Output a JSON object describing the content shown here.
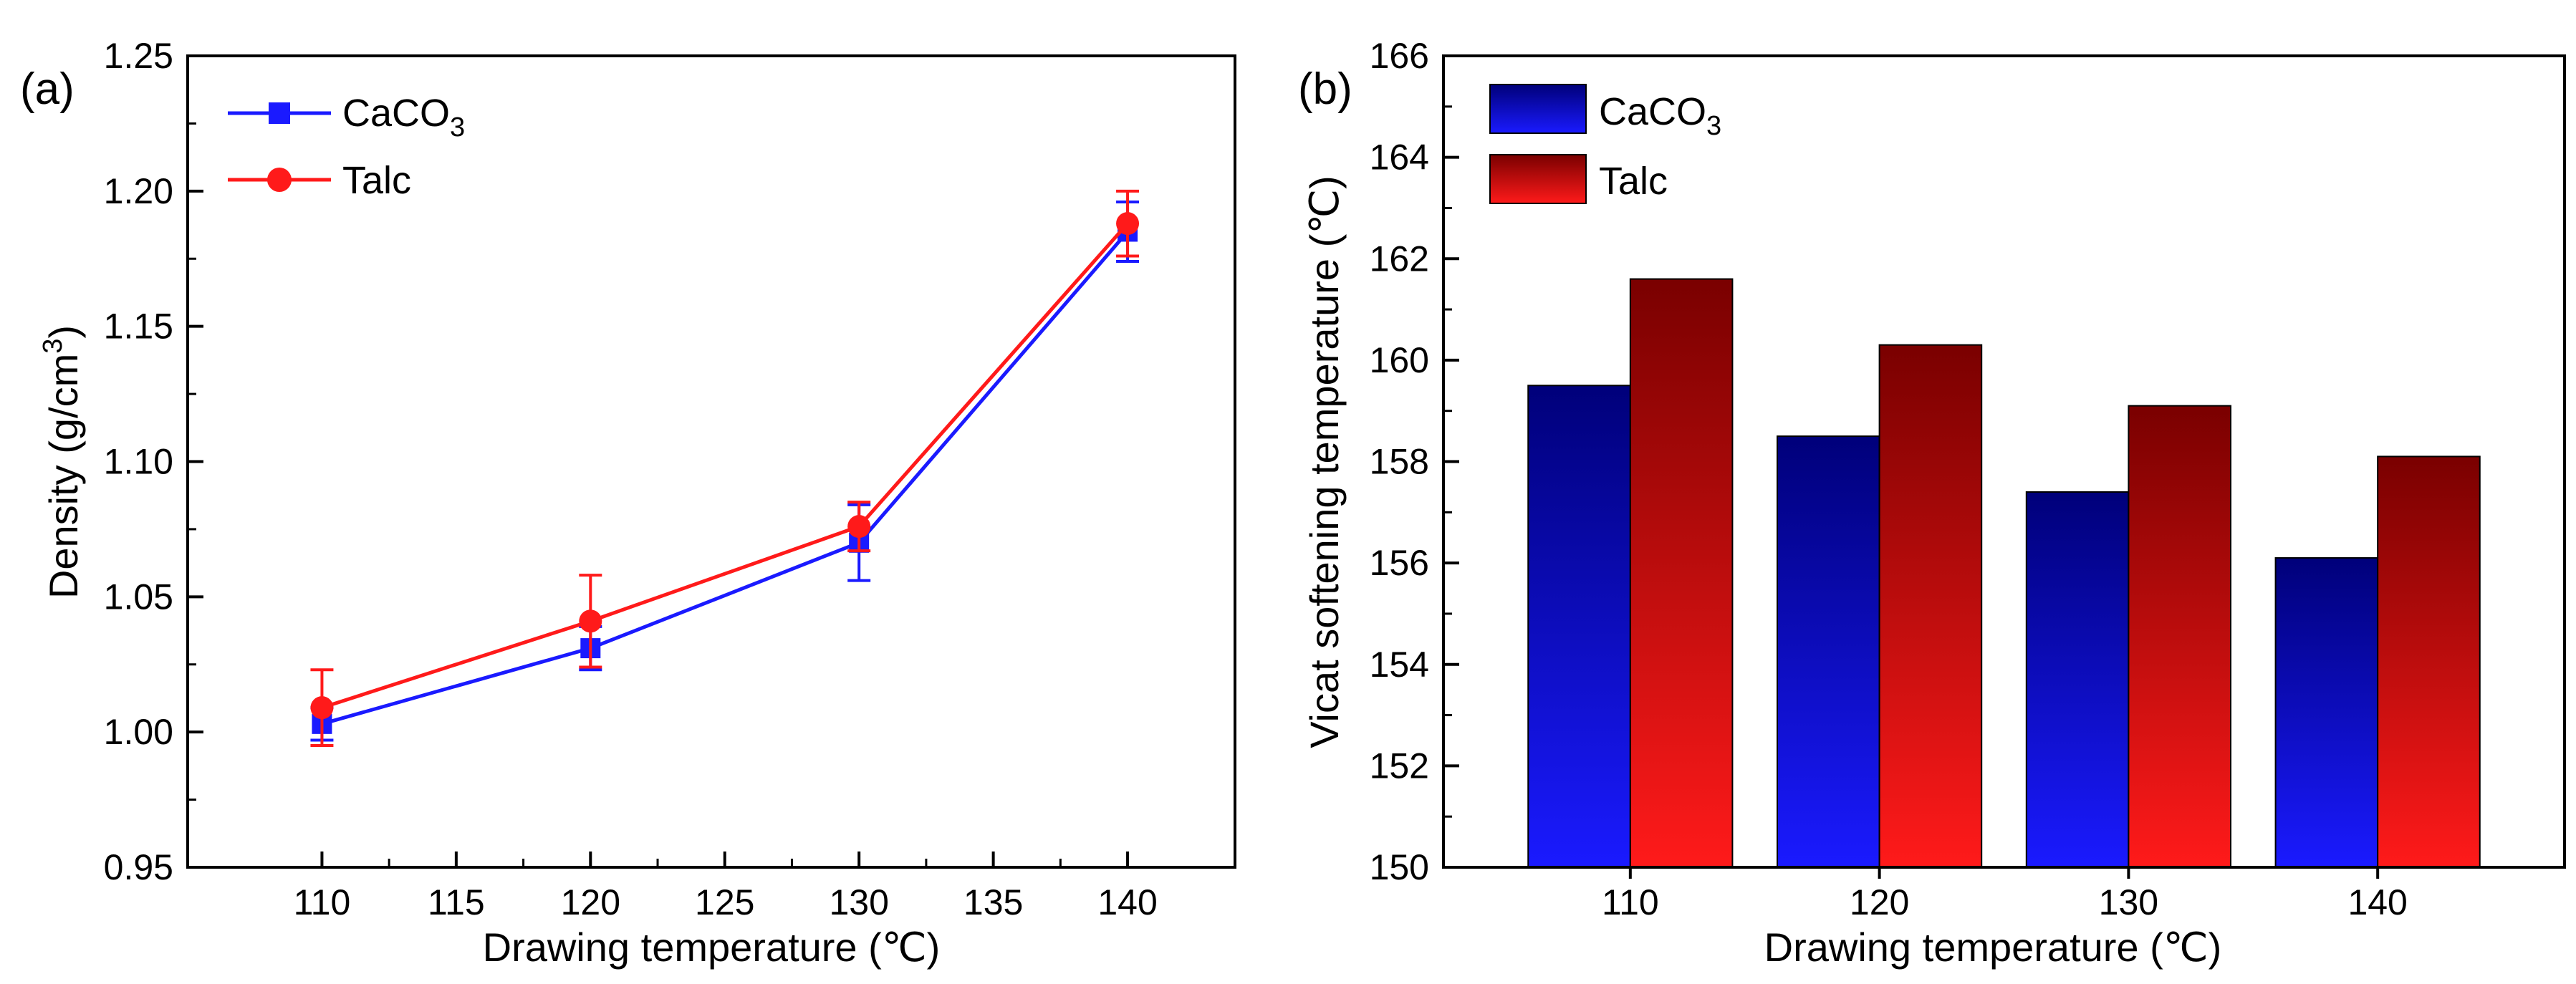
{
  "colors": {
    "caco3": "#1a1aff",
    "talc": "#ff1a1a",
    "caco3_dark": "#00007a",
    "talc_dark": "#7a0000",
    "axis": "#000000"
  },
  "chart_data": [
    {
      "panel": "(a)",
      "type": "line",
      "x": [
        110,
        120,
        130,
        140
      ],
      "series": [
        {
          "name": "CaCO3",
          "legend_base": "CaCO",
          "legend_sub": "3",
          "marker": "square",
          "values": [
            1.003,
            1.031,
            1.07,
            1.185
          ],
          "errors": [
            0.006,
            0.008,
            0.014,
            0.011
          ]
        },
        {
          "name": "Talc",
          "legend_base": "Talc",
          "legend_sub": "",
          "marker": "circle",
          "values": [
            1.009,
            1.041,
            1.076,
            1.188
          ],
          "errors": [
            0.014,
            0.017,
            0.009,
            0.012
          ]
        }
      ],
      "xlabel": "Drawing temperature (℃)",
      "ylabel_base": "Density (g/cm",
      "ylabel_sup": "3",
      "ylabel_close": ")",
      "xlim": [
        105,
        144
      ],
      "ylim": [
        0.95,
        1.25
      ],
      "xticks": [
        110,
        115,
        120,
        125,
        130,
        135,
        140
      ],
      "yticks": [
        0.95,
        1.0,
        1.05,
        1.1,
        1.15,
        1.2,
        1.25
      ],
      "xtick_labels": [
        "110",
        "115",
        "120",
        "125",
        "130",
        "135",
        "140"
      ],
      "ytick_labels": [
        "0.95",
        "1.00",
        "1.05",
        "1.10",
        "1.15",
        "1.20",
        "1.25"
      ],
      "legend_position": "top-left"
    },
    {
      "panel": "(b)",
      "type": "bar",
      "categories": [
        "110",
        "120",
        "130",
        "140"
      ],
      "series": [
        {
          "name": "CaCO3",
          "legend_base": "CaCO",
          "legend_sub": "3",
          "values": [
            159.5,
            158.5,
            157.4,
            156.1
          ]
        },
        {
          "name": "Talc",
          "legend_base": "Talc",
          "legend_sub": "",
          "values": [
            161.6,
            160.3,
            159.1,
            158.1
          ]
        }
      ],
      "xlabel": "Drawing temperature (℃)",
      "ylabel": "Vicat softening temperature (℃)",
      "ylim": [
        150,
        166
      ],
      "yticks": [
        150,
        152,
        154,
        156,
        158,
        160,
        162,
        164,
        166
      ],
      "ytick_labels": [
        "150",
        "152",
        "154",
        "156",
        "158",
        "160",
        "162",
        "164",
        "166"
      ],
      "legend_position": "top-left"
    }
  ]
}
